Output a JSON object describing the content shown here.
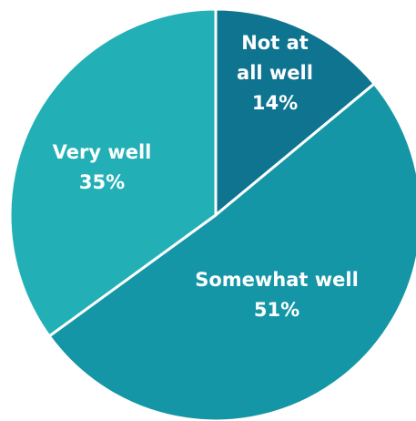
{
  "chart_data": {
    "type": "pie",
    "title": "",
    "slices": [
      {
        "label_lines": [
          "Not at",
          "all well"
        ],
        "value": 14,
        "value_label": "14%",
        "color": "#0e7490"
      },
      {
        "label_lines": [
          "Somewhat well"
        ],
        "value": 51,
        "value_label": "51%",
        "color": "#1496a6"
      },
      {
        "label_lines": [
          "Very well"
        ],
        "value": 35,
        "value_label": "35%",
        "color": "#22b0b6"
      }
    ],
    "start_angle_deg": 0,
    "direction": "clockwise",
    "legend": "none"
  }
}
